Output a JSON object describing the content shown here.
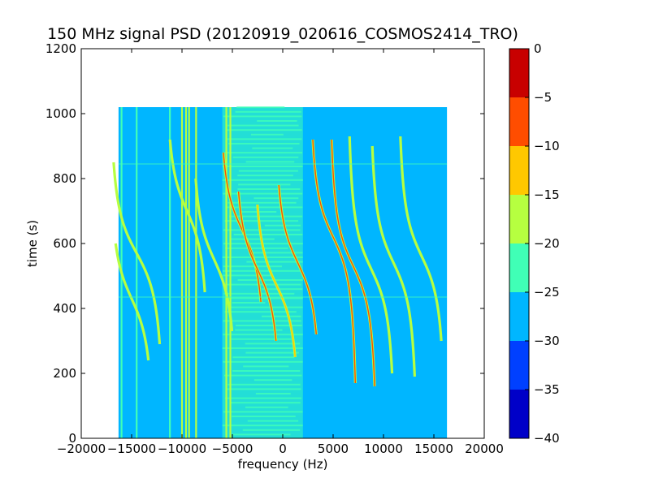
{
  "chart_data": {
    "type": "heatmap",
    "title": "150 MHz signal PSD (20120919_020616_COSMOS2414_TRO)",
    "xlabel": "frequency (Hz)",
    "ylabel": "time (s)",
    "xlim": [
      -20000,
      20000
    ],
    "ylim": [
      0,
      1200
    ],
    "x_ticks": [
      -20000,
      -15000,
      -10000,
      -5000,
      0,
      5000,
      10000,
      15000,
      20000
    ],
    "y_ticks": [
      0,
      200,
      400,
      600,
      800,
      1000
    ],
    "data_extent": {
      "x": [
        -16300,
        16300
      ],
      "y": [
        0,
        1020
      ]
    },
    "grid": false,
    "colormap": "jet",
    "colorbar": {
      "range": [
        -40,
        0
      ],
      "ticks": [
        0,
        -5,
        -10,
        -15,
        -20,
        -25,
        -30,
        -35,
        -40
      ],
      "levels": [
        {
          "from": -40,
          "to": -35,
          "color": "#0000c8"
        },
        {
          "from": -35,
          "to": -30,
          "color": "#0040ff"
        },
        {
          "from": -30,
          "to": -25,
          "color": "#00b6ff"
        },
        {
          "from": -25,
          "to": -20,
          "color": "#40ffb6"
        },
        {
          "from": -20,
          "to": -15,
          "color": "#b6ff40"
        },
        {
          "from": -15,
          "to": -10,
          "color": "#ffc800"
        },
        {
          "from": -10,
          "to": -5,
          "color": "#ff4d00"
        },
        {
          "from": -5,
          "to": 0,
          "color": "#c80000"
        }
      ]
    },
    "background_level": -27.5,
    "diffuse_region": {
      "x": [
        -6000,
        2000
      ],
      "level": -22.5
    },
    "vertical_lines": [
      {
        "x": -16000,
        "level": -22.5
      },
      {
        "x": -14500,
        "level": -22.5
      },
      {
        "x": -11200,
        "level": -22.5
      },
      {
        "x": -10000,
        "level": -17.5
      },
      {
        "x": -9600,
        "level": -17.5
      },
      {
        "x": -9300,
        "level": -17.5
      },
      {
        "x": -8600,
        "level": -17.5
      },
      {
        "x": -5600,
        "level": -17.5
      },
      {
        "x": -5200,
        "level": -17.5
      }
    ],
    "doppler_traces": [
      {
        "x_center": -14500,
        "t_center": 570,
        "amplitude": 3000,
        "t_range": [
          290,
          850
        ],
        "level": -17.5
      },
      {
        "x_center": -15000,
        "t_center": 430,
        "amplitude": 2500,
        "t_range": [
          240,
          600
        ],
        "level": -17.5
      },
      {
        "x_center": -9500,
        "t_center": 700,
        "amplitude": 2400,
        "t_range": [
          450,
          920
        ],
        "level": -17.5
      },
      {
        "x_center": -6800,
        "t_center": 550,
        "amplitude": 2500,
        "t_range": [
          330,
          800
        ],
        "level": -17.5
      },
      {
        "x_center": -4000,
        "t_center": 640,
        "amplitude": 2600,
        "t_range": [
          420,
          880
        ],
        "level": -7.5
      },
      {
        "x_center": -2500,
        "t_center": 520,
        "amplitude": 2600,
        "t_range": [
          300,
          760
        ],
        "level": -7.5
      },
      {
        "x_center": -600,
        "t_center": 470,
        "amplitude": 2600,
        "t_range": [
          250,
          720
        ],
        "level": -12.5
      },
      {
        "x_center": 1500,
        "t_center": 540,
        "amplitude": 2600,
        "t_range": [
          320,
          780
        ],
        "level": -7.5
      },
      {
        "x_center": 5000,
        "t_center": 620,
        "amplitude": 2600,
        "t_range": [
          170,
          920
        ],
        "level": -7.5
      },
      {
        "x_center": 7000,
        "t_center": 530,
        "amplitude": 2600,
        "t_range": [
          160,
          920
        ],
        "level": -7.5
      },
      {
        "x_center": 8800,
        "t_center": 520,
        "amplitude": 2600,
        "t_range": [
          200,
          930
        ],
        "level": -17.5
      },
      {
        "x_center": 11000,
        "t_center": 540,
        "amplitude": 2600,
        "t_range": [
          190,
          900
        ],
        "level": -17.5
      },
      {
        "x_center": 13800,
        "t_center": 560,
        "amplitude": 2600,
        "t_range": [
          300,
          930
        ],
        "level": -17.5
      }
    ],
    "horizontal_streaks": [
      {
        "y": 845
      },
      {
        "y": 435
      }
    ]
  }
}
